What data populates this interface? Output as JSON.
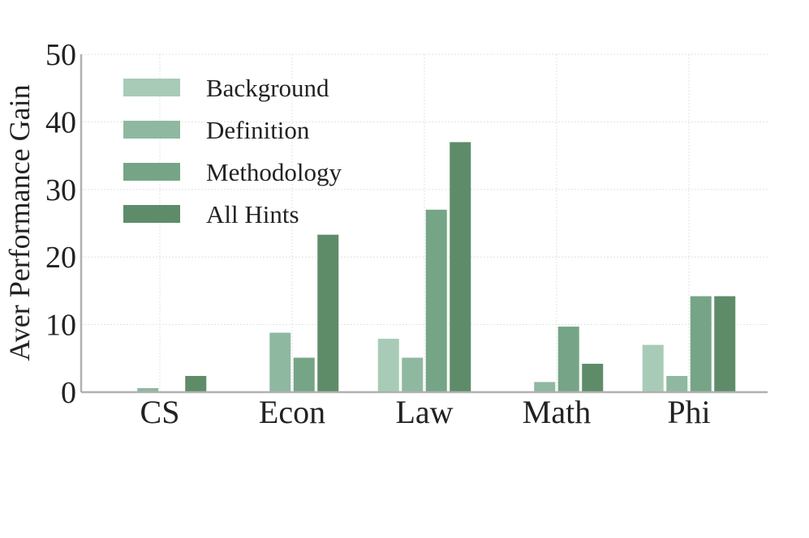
{
  "chart_data": {
    "type": "bar",
    "title": "",
    "xlabel": "",
    "ylabel": "Aver Performance Gain",
    "ylim": [
      0,
      50
    ],
    "yticks": [
      0,
      10,
      20,
      30,
      40,
      50
    ],
    "grid": true,
    "legend_position": "top-left",
    "categories": [
      "CS",
      "Econ",
      "Law",
      "Math",
      "Phi"
    ],
    "series": [
      {
        "name": "Background",
        "color": "#a8cbb7",
        "values": [
          0,
          0,
          7.9,
          0,
          7.0
        ]
      },
      {
        "name": "Definition",
        "color": "#8fb8a0",
        "values": [
          0.6,
          8.8,
          5.1,
          1.5,
          2.4
        ]
      },
      {
        "name": "Methodology",
        "color": "#75a586",
        "values": [
          0,
          5.1,
          27.0,
          9.7,
          14.2
        ]
      },
      {
        "name": "All Hints",
        "color": "#5e8c68",
        "values": [
          2.4,
          23.3,
          37.0,
          4.2,
          14.2
        ]
      }
    ]
  }
}
